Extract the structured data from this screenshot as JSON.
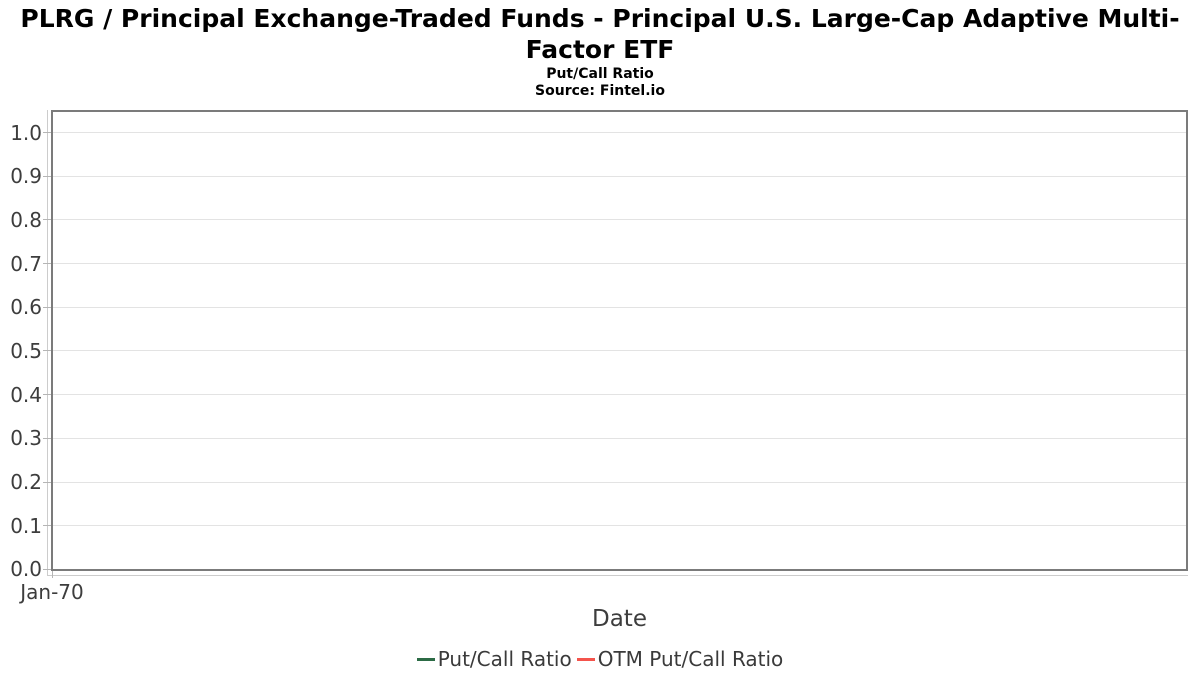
{
  "header": {
    "title": "PLRG / Principal Exchange-Traded Funds - Principal U.S. Large-Cap Adaptive Multi-Factor ETF",
    "subtitle": "Put/Call Ratio",
    "source": "Source: Fintel.io"
  },
  "axes": {
    "x_title": "Date",
    "x_tick_labels": [
      "Jan-70"
    ],
    "y_tick_labels": [
      "1.0",
      "0.9",
      "0.8",
      "0.7",
      "0.6",
      "0.5",
      "0.4",
      "0.3",
      "0.2",
      "0.1",
      "0.0"
    ]
  },
  "legend": {
    "items": [
      {
        "label": "Put/Call Ratio",
        "color": "#2c6b45"
      },
      {
        "label": "OTM Put/Call Ratio",
        "color": "#f4544c"
      }
    ]
  },
  "colors": {
    "plot_border": "#7b7b7b",
    "gridline": "#e3e3e3",
    "axis_line": "#cccccc",
    "tick_mark": "#b5b5b5",
    "label_text": "#3d3d3d",
    "title_text": "#000000",
    "series_put_call": "#2c6b45",
    "series_otm_put_call": "#f4544c"
  },
  "chart_data": {
    "type": "line",
    "title": "PLRG / Principal Exchange-Traded Funds - Principal U.S. Large-Cap Adaptive Multi-Factor ETF",
    "subtitle": "Put/Call Ratio",
    "source": "Source: Fintel.io",
    "xlabel": "Date",
    "ylabel": "",
    "ylim": [
      0.0,
      1.05
    ],
    "y_ticks": [
      0.0,
      0.1,
      0.2,
      0.3,
      0.4,
      0.5,
      0.6,
      0.7,
      0.8,
      0.9,
      1.0
    ],
    "x_tick_labels": [
      "Jan-70"
    ],
    "grid": true,
    "legend_position": "bottom",
    "series": [
      {
        "name": "Put/Call Ratio",
        "color": "#2c6b45",
        "x": [],
        "values": []
      },
      {
        "name": "OTM Put/Call Ratio",
        "color": "#f4544c",
        "x": [],
        "values": []
      }
    ]
  }
}
